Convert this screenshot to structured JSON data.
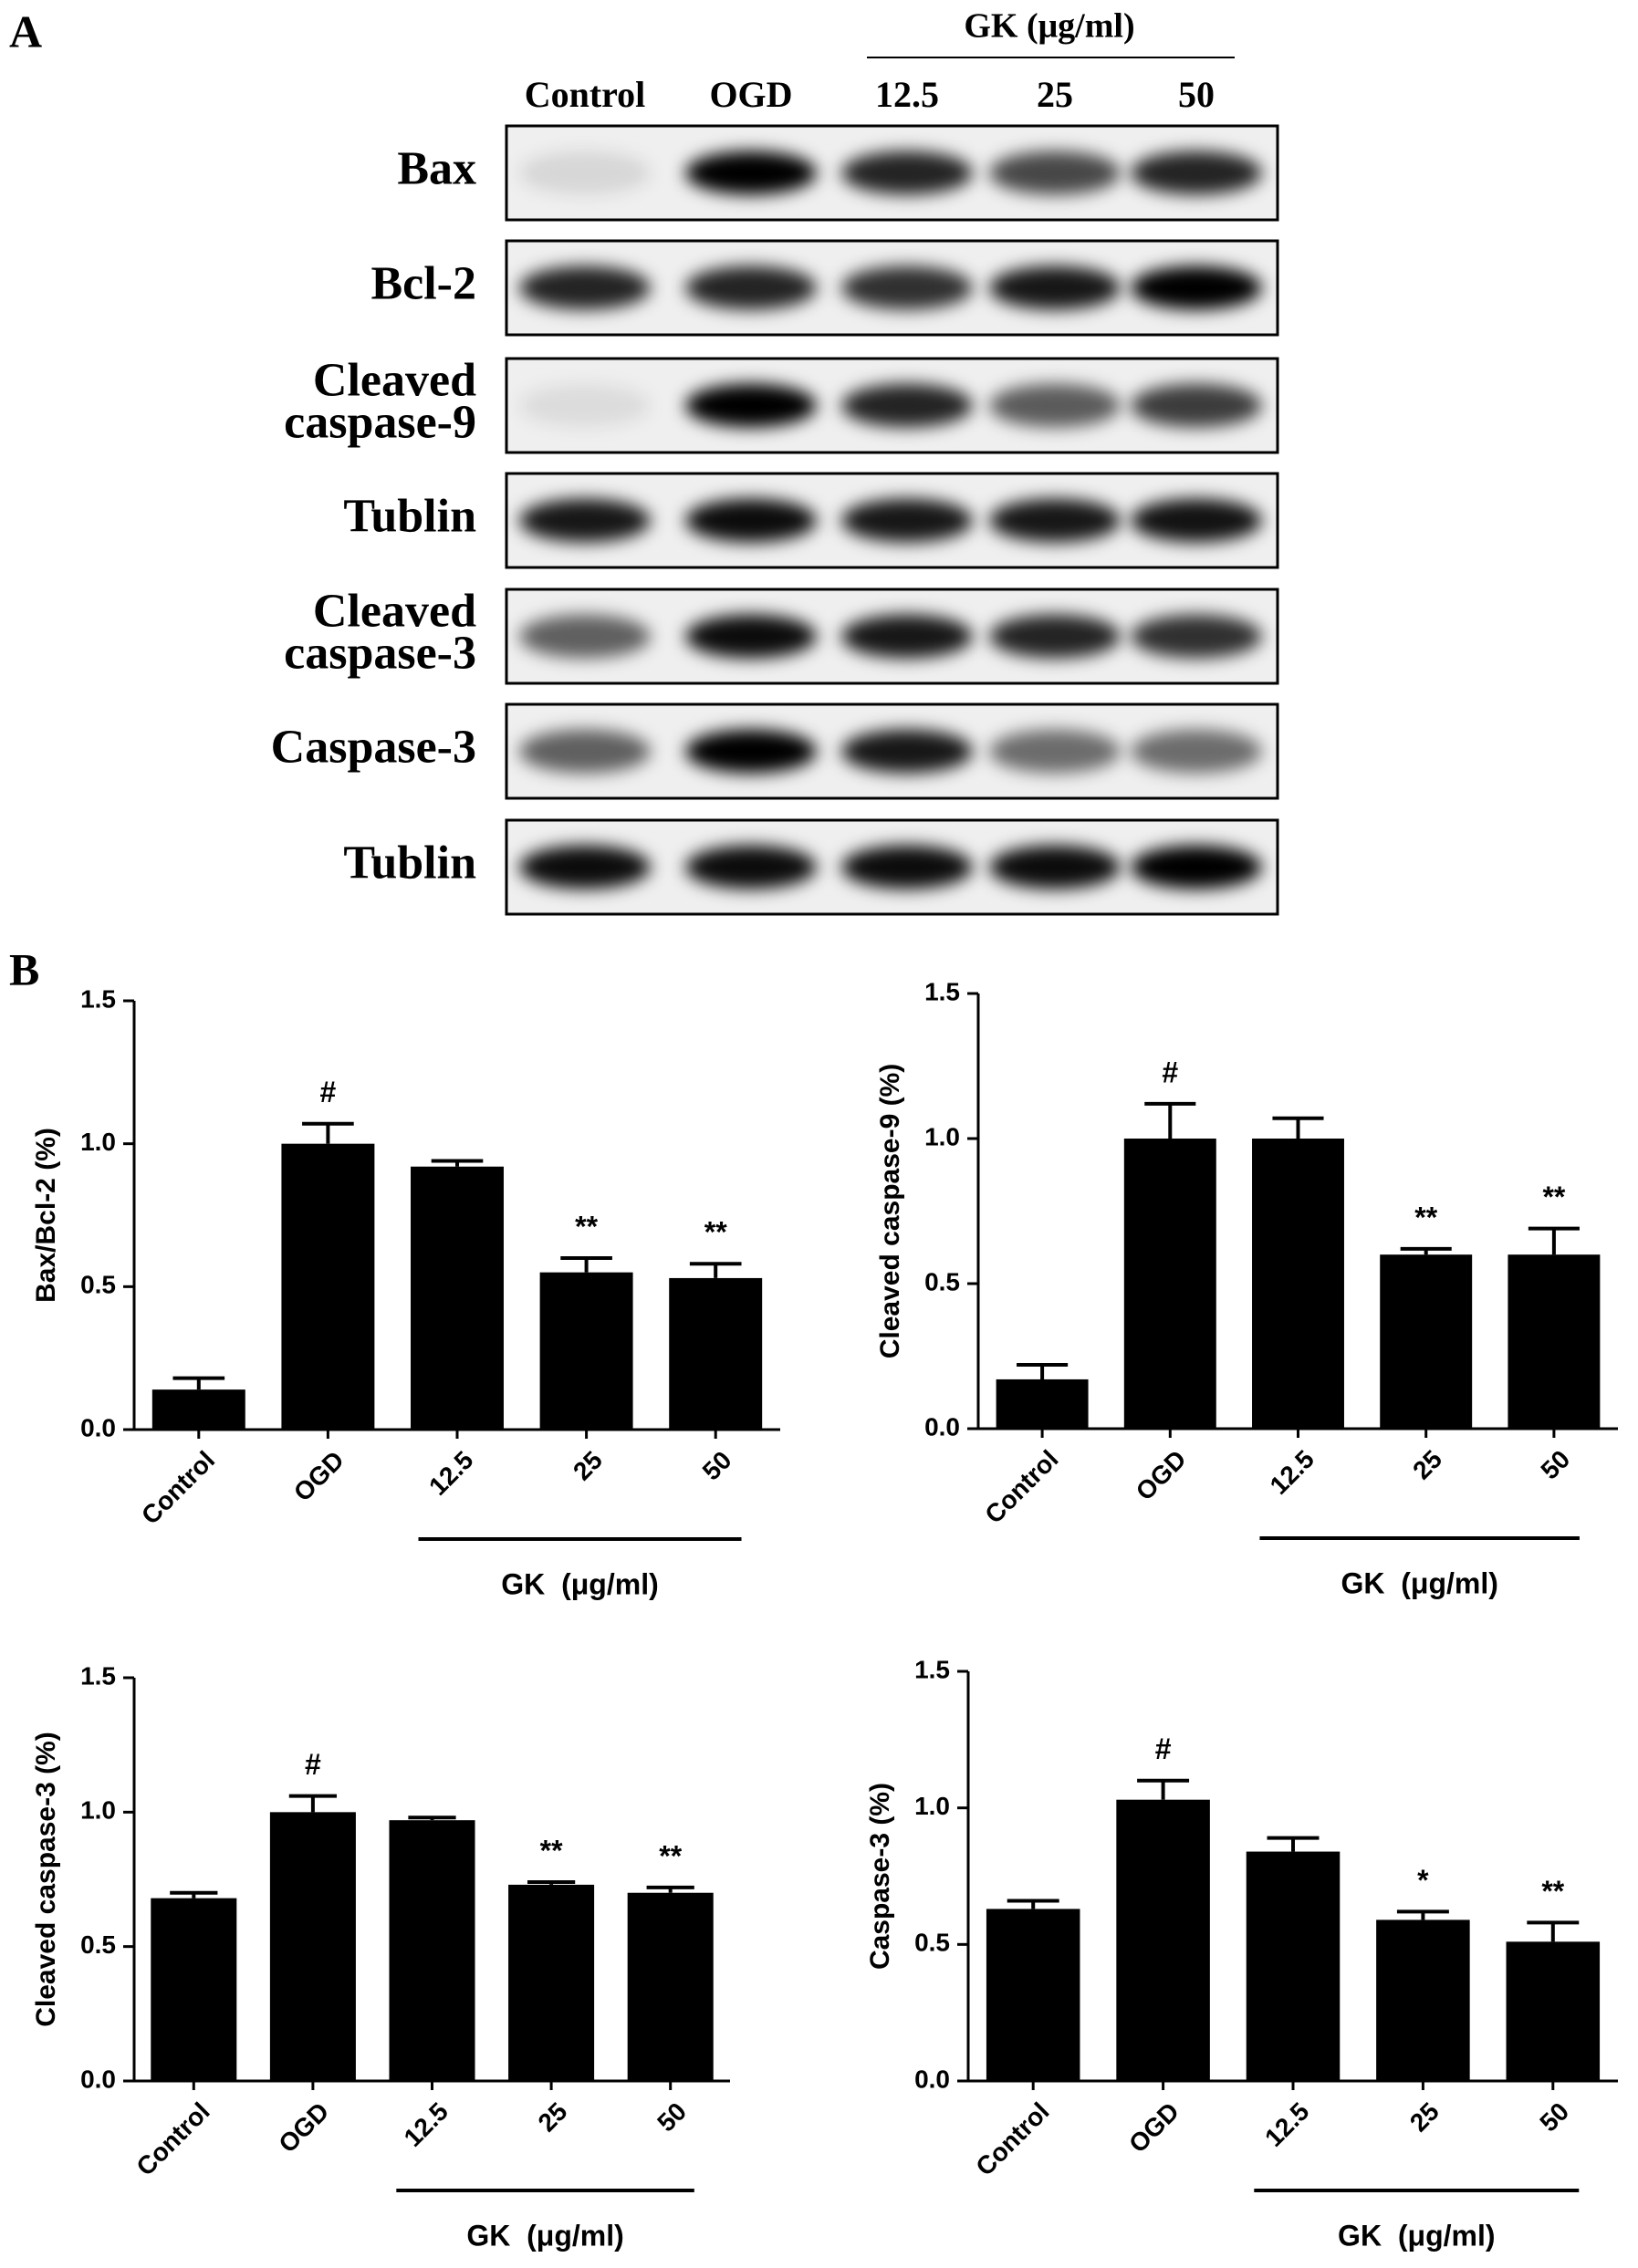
{
  "panel_labels": [
    "A",
    "B"
  ],
  "blot": {
    "group_label": "GK (μg/ml)",
    "lanes": [
      "Control",
      "OGD",
      "12.5",
      "25",
      "50"
    ],
    "rows": [
      [
        "Bax"
      ],
      [
        "Bcl-2"
      ],
      [
        "Cleaved",
        "caspase-9"
      ],
      [
        "Tublin"
      ],
      [
        "Cleaved",
        "caspase-3"
      ],
      [
        "Caspase-3"
      ],
      [
        "Tublin"
      ]
    ]
  },
  "chart_data": [
    {
      "type": "bar",
      "ylabel": "Bax/Bcl-2 (%)",
      "categories": [
        "Control",
        "OGD",
        "12.5",
        "25",
        "50"
      ],
      "values": [
        0.14,
        1.0,
        0.92,
        0.55,
        0.53
      ],
      "errors": [
        0.04,
        0.07,
        0.02,
        0.05,
        0.05
      ],
      "markers": [
        null,
        "#",
        null,
        "**",
        "**"
      ],
      "group_label": "GK  (μg/ml)",
      "color": "#000000",
      "ylim": [
        0,
        1.5
      ],
      "yticks": [
        {
          "value": 0,
          "label": "0.0"
        },
        {
          "value": 0.5,
          "label": "0.5"
        },
        {
          "value": 1,
          "label": "1.0"
        },
        {
          "value": 1.5,
          "label": "1.5"
        }
      ]
    },
    {
      "type": "bar",
      "ylabel": "Cleaved caspase-9 (%)",
      "categories": [
        "Control",
        "OGD",
        "12.5",
        "25",
        "50"
      ],
      "values": [
        0.17,
        1.0,
        1.0,
        0.6,
        0.6
      ],
      "errors": [
        0.05,
        0.12,
        0.07,
        0.02,
        0.09
      ],
      "markers": [
        null,
        "#",
        null,
        "**",
        "**"
      ],
      "group_label": "GK  (μg/ml)",
      "color": "#000000",
      "ylim": [
        0,
        1.5
      ],
      "yticks": [
        {
          "value": 0,
          "label": "0.0"
        },
        {
          "value": 0.5,
          "label": "0.5"
        },
        {
          "value": 1,
          "label": "1.0"
        },
        {
          "value": 1.5,
          "label": "1.5"
        }
      ]
    },
    {
      "type": "bar",
      "ylabel": "Cleaved caspase-3 (%)",
      "categories": [
        "Control",
        "OGD",
        "12.5",
        "25",
        "50"
      ],
      "values": [
        0.68,
        1.0,
        0.97,
        0.73,
        0.7
      ],
      "errors": [
        0.02,
        0.06,
        0.01,
        0.01,
        0.02
      ],
      "markers": [
        null,
        "#",
        null,
        "**",
        "**"
      ],
      "group_label": "GK  (μg/ml)",
      "color": "#000000",
      "ylim": [
        0,
        1.5
      ],
      "yticks": [
        {
          "value": 0,
          "label": "0.0"
        },
        {
          "value": 0.5,
          "label": "0.5"
        },
        {
          "value": 1,
          "label": "1.0"
        },
        {
          "value": 1.5,
          "label": "1.5"
        }
      ]
    },
    {
      "type": "bar",
      "ylabel": "Caspase-3 (%)",
      "categories": [
        "Control",
        "OGD",
        "12.5",
        "25",
        "50"
      ],
      "values": [
        0.63,
        1.03,
        0.84,
        0.59,
        0.51
      ],
      "errors": [
        0.03,
        0.07,
        0.05,
        0.03,
        0.07
      ],
      "markers": [
        null,
        "#",
        null,
        "*",
        "**"
      ],
      "group_label": "GK  (μg/ml)",
      "color": "#000000",
      "ylim": [
        0,
        1.5
      ],
      "yticks": [
        {
          "value": 0,
          "label": "0.0"
        },
        {
          "value": 0.5,
          "label": "0.5"
        },
        {
          "value": 1,
          "label": "1.0"
        },
        {
          "value": 1.5,
          "label": "1.5"
        }
      ]
    }
  ]
}
